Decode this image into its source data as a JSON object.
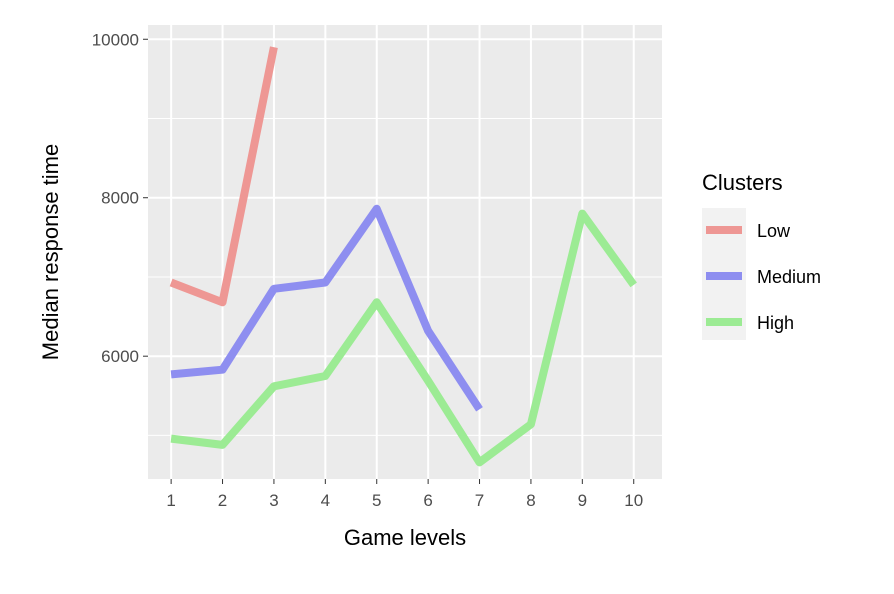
{
  "chart_data": {
    "type": "line",
    "title": "",
    "xlabel": "Game levels",
    "ylabel": "Median response time",
    "x": [
      1,
      2,
      3,
      4,
      5,
      6,
      7,
      8,
      9,
      10
    ],
    "x_tick_labels": [
      "1",
      "2",
      "3",
      "4",
      "5",
      "6",
      "7",
      "8",
      "9",
      "10"
    ],
    "y_ticks": [
      6000,
      8000,
      10000
    ],
    "y_tick_labels": [
      "6000",
      "8000",
      "10000"
    ],
    "xlim": [
      0.55,
      10.55
    ],
    "ylim": [
      4450,
      10180
    ],
    "grid": true,
    "legend": {
      "title": "Clusters",
      "position": "right"
    },
    "series": [
      {
        "name": "Low",
        "color": "#EE9794",
        "x": [
          1,
          2,
          3
        ],
        "values": [
          6930,
          6680,
          9900
        ]
      },
      {
        "name": "Medium",
        "color": "#8E8EF0",
        "x": [
          1,
          2,
          3,
          4,
          5,
          6,
          7
        ],
        "values": [
          5770,
          5830,
          6850,
          6930,
          7860,
          6320,
          5330
        ]
      },
      {
        "name": "High",
        "color": "#9CEB94",
        "x": [
          1,
          2,
          3,
          4,
          5,
          6,
          7,
          8,
          9,
          10
        ],
        "values": [
          4960,
          4880,
          5620,
          5750,
          6680,
          5690,
          4660,
          5140,
          7800,
          6900
        ]
      }
    ]
  }
}
